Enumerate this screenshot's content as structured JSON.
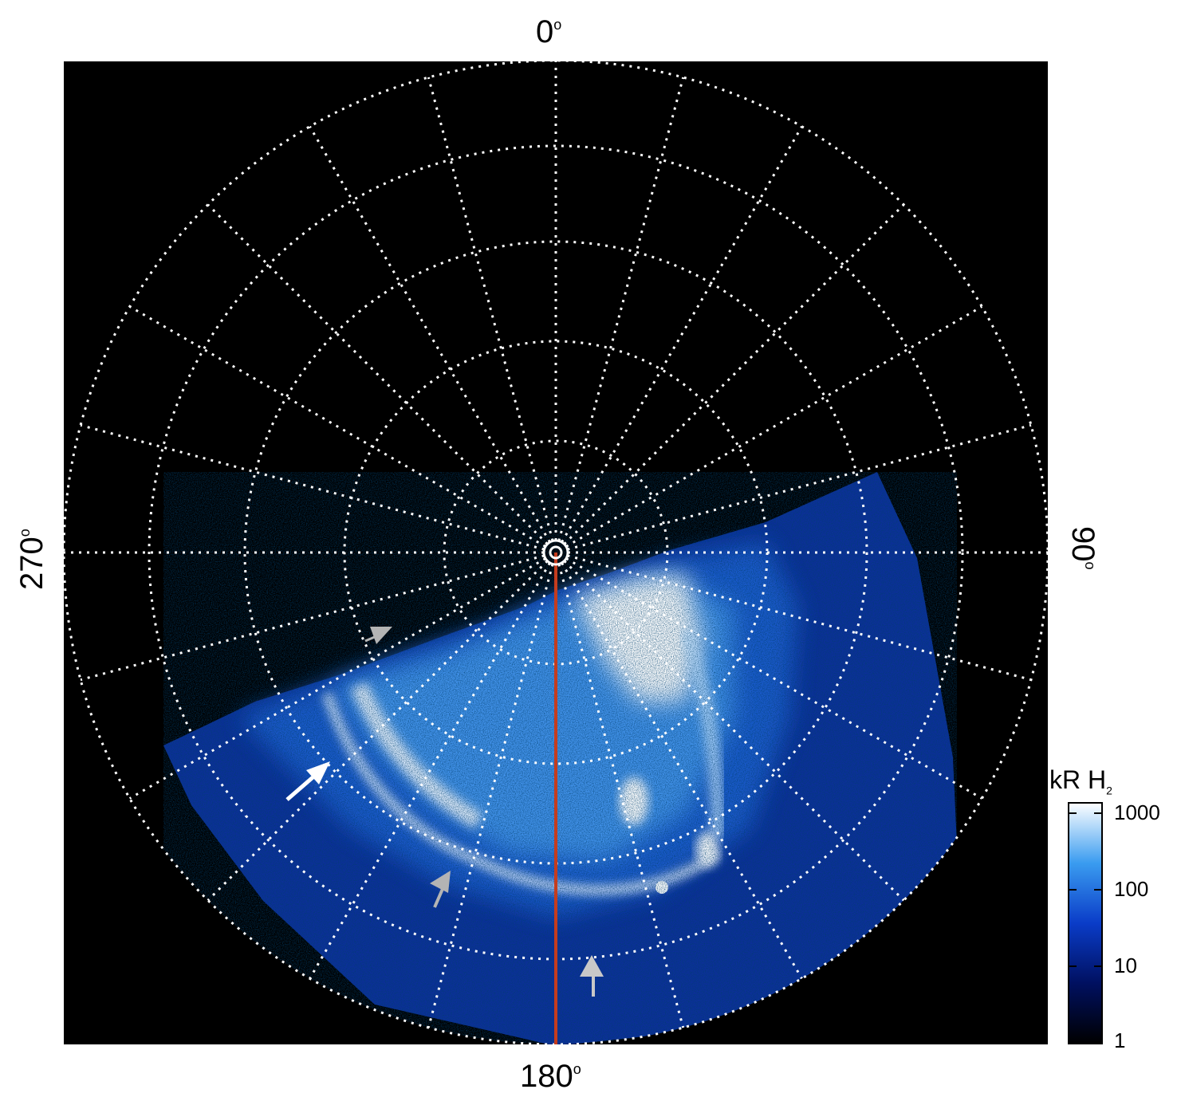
{
  "figure": {
    "labels": {
      "top": "0",
      "bottom": "180",
      "left": "270",
      "right": "90",
      "degree_symbol": "o"
    },
    "colorbar": {
      "title": "kR H",
      "subscript": "2",
      "ticks": [
        "1000",
        "100",
        "10",
        "1"
      ]
    }
  },
  "colors": {
    "background": "#000000",
    "grid": "#ffffff",
    "meridian_line": "#c43c1e",
    "aurora_bright": "#ffffff",
    "aurora_mid": "#3a8be6",
    "aurora_low": "#0a2a8c",
    "arrow_white": "#ffffff",
    "arrow_gray": "#b4b4b4"
  }
}
